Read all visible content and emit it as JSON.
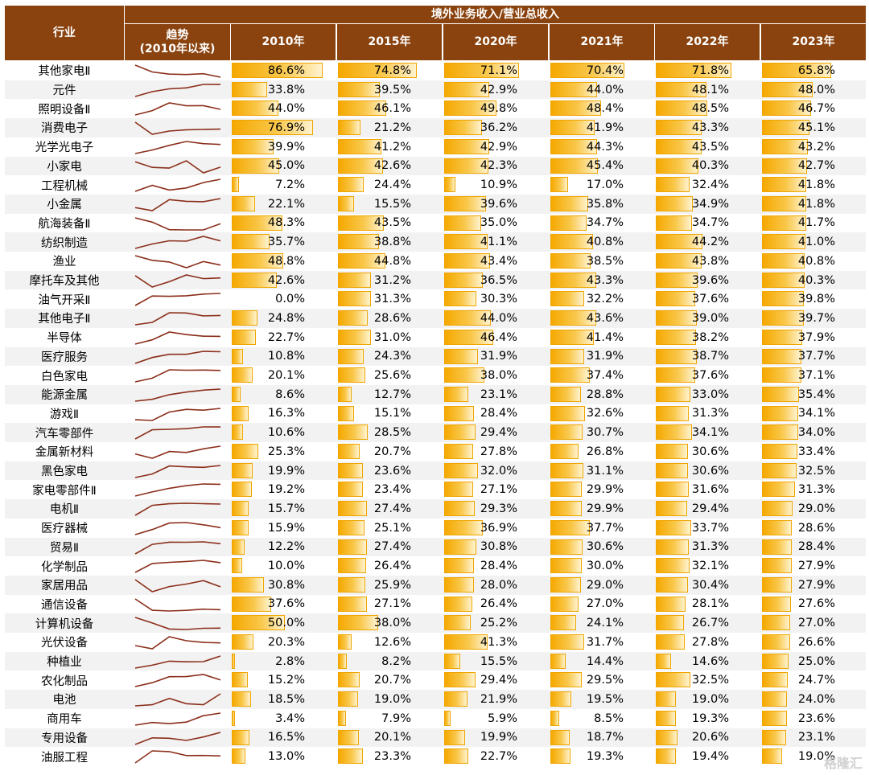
{
  "table": {
    "col_industry": "行业",
    "col_group": "境外业务收入/营业总收入",
    "col_trend": "趋势",
    "col_trend_sub": "(2010年以来)",
    "years": [
      "2010年",
      "2015年",
      "2020年",
      "2021年",
      "2022年",
      "2023年"
    ]
  },
  "chart_data": {
    "type": "table",
    "title": "境外业务收入/营业总收入",
    "unit": "%",
    "years": [
      "2010年",
      "2015年",
      "2020年",
      "2021年",
      "2022年",
      "2023年"
    ],
    "rows": [
      {
        "industry": "其他家电Ⅱ",
        "values": [
          86.6,
          74.8,
          71.1,
          70.4,
          71.8,
          65.8
        ]
      },
      {
        "industry": "元件",
        "values": [
          33.8,
          39.5,
          42.9,
          44.0,
          48.1,
          48.0
        ]
      },
      {
        "industry": "照明设备Ⅱ",
        "values": [
          44.0,
          46.1,
          49.8,
          48.4,
          48.5,
          46.7
        ]
      },
      {
        "industry": "消费电子",
        "values": [
          76.9,
          21.2,
          36.2,
          41.9,
          43.3,
          45.1
        ]
      },
      {
        "industry": "光学光电子",
        "values": [
          39.9,
          41.2,
          42.9,
          44.3,
          43.5,
          43.2
        ]
      },
      {
        "industry": "小家电",
        "values": [
          45.0,
          42.6,
          42.3,
          45.4,
          40.3,
          42.7
        ]
      },
      {
        "industry": "工程机械",
        "values": [
          7.2,
          24.4,
          10.9,
          17.0,
          32.4,
          41.8
        ]
      },
      {
        "industry": "小金属",
        "values": [
          22.1,
          15.5,
          39.6,
          35.8,
          34.9,
          41.8
        ]
      },
      {
        "industry": "航海装备Ⅱ",
        "values": [
          48.3,
          43.5,
          35.0,
          34.7,
          34.7,
          41.7
        ]
      },
      {
        "industry": "纺织制造",
        "values": [
          35.7,
          38.8,
          41.1,
          40.8,
          44.2,
          41.0
        ]
      },
      {
        "industry": "渔业",
        "values": [
          48.8,
          44.8,
          43.4,
          38.5,
          43.8,
          40.8
        ]
      },
      {
        "industry": "摩托车及其他",
        "values": [
          42.6,
          31.2,
          36.5,
          43.3,
          39.6,
          40.3
        ]
      },
      {
        "industry": "油气开采Ⅱ",
        "values": [
          0.0,
          31.3,
          30.3,
          32.2,
          37.6,
          39.8
        ]
      },
      {
        "industry": "其他电子Ⅱ",
        "values": [
          24.8,
          28.6,
          44.0,
          43.6,
          39.0,
          39.7
        ]
      },
      {
        "industry": "半导体",
        "values": [
          22.7,
          31.0,
          46.4,
          41.4,
          38.2,
          37.9
        ]
      },
      {
        "industry": "医疗服务",
        "values": [
          10.8,
          24.3,
          31.9,
          31.9,
          38.7,
          37.7
        ]
      },
      {
        "industry": "白色家电",
        "values": [
          20.1,
          25.6,
          38.0,
          37.4,
          37.6,
          37.1
        ]
      },
      {
        "industry": "能源金属",
        "values": [
          8.6,
          12.7,
          23.1,
          28.8,
          33.0,
          35.4
        ]
      },
      {
        "industry": "游戏Ⅱ",
        "values": [
          16.3,
          15.1,
          28.4,
          32.6,
          31.3,
          34.1
        ]
      },
      {
        "industry": "汽车零部件",
        "values": [
          10.6,
          28.5,
          29.4,
          30.7,
          34.1,
          34.0
        ]
      },
      {
        "industry": "金属新材料",
        "values": [
          25.3,
          20.7,
          27.8,
          26.8,
          30.6,
          33.4
        ]
      },
      {
        "industry": "黑色家电",
        "values": [
          19.9,
          23.6,
          32.0,
          31.1,
          30.6,
          32.5
        ]
      },
      {
        "industry": "家电零部件Ⅱ",
        "values": [
          19.2,
          23.4,
          27.1,
          29.9,
          31.6,
          31.3
        ]
      },
      {
        "industry": "电机Ⅱ",
        "values": [
          15.7,
          27.4,
          29.3,
          29.9,
          29.4,
          29.0
        ]
      },
      {
        "industry": "医疗器械",
        "values": [
          15.9,
          25.1,
          36.9,
          37.7,
          33.7,
          28.6
        ]
      },
      {
        "industry": "贸易Ⅱ",
        "values": [
          12.2,
          27.4,
          30.8,
          30.6,
          31.3,
          28.4
        ]
      },
      {
        "industry": "化学制品",
        "values": [
          10.0,
          26.4,
          28.4,
          30.0,
          32.1,
          27.9
        ]
      },
      {
        "industry": "家居用品",
        "values": [
          30.8,
          25.9,
          28.0,
          29.0,
          30.4,
          27.9
        ]
      },
      {
        "industry": "通信设备",
        "values": [
          37.6,
          27.1,
          26.4,
          27.0,
          28.1,
          27.6
        ]
      },
      {
        "industry": "计算机设备",
        "values": [
          50.0,
          38.0,
          25.2,
          24.1,
          26.7,
          27.0
        ]
      },
      {
        "industry": "光伏设备",
        "values": [
          20.3,
          12.6,
          41.3,
          31.7,
          27.8,
          26.6
        ]
      },
      {
        "industry": "种植业",
        "values": [
          2.8,
          8.2,
          15.5,
          14.4,
          14.6,
          25.0
        ]
      },
      {
        "industry": "农化制品",
        "values": [
          15.2,
          20.7,
          29.4,
          29.5,
          32.5,
          24.7
        ]
      },
      {
        "industry": "电池",
        "values": [
          18.5,
          19.0,
          21.9,
          19.5,
          19.0,
          24.0
        ]
      },
      {
        "industry": "商用车",
        "values": [
          3.4,
          7.9,
          5.9,
          8.5,
          19.3,
          23.6
        ]
      },
      {
        "industry": "专用设备",
        "values": [
          16.5,
          20.1,
          19.9,
          18.7,
          20.6,
          23.1
        ]
      },
      {
        "industry": "油服工程",
        "values": [
          13.0,
          23.3,
          22.7,
          19.3,
          19.4,
          19.0
        ]
      }
    ]
  },
  "colors": {
    "header_bg": "#8a430f",
    "bar_fill": "#f5a800",
    "sparkline": "#8b2e1a"
  },
  "watermark": "格隆汇"
}
